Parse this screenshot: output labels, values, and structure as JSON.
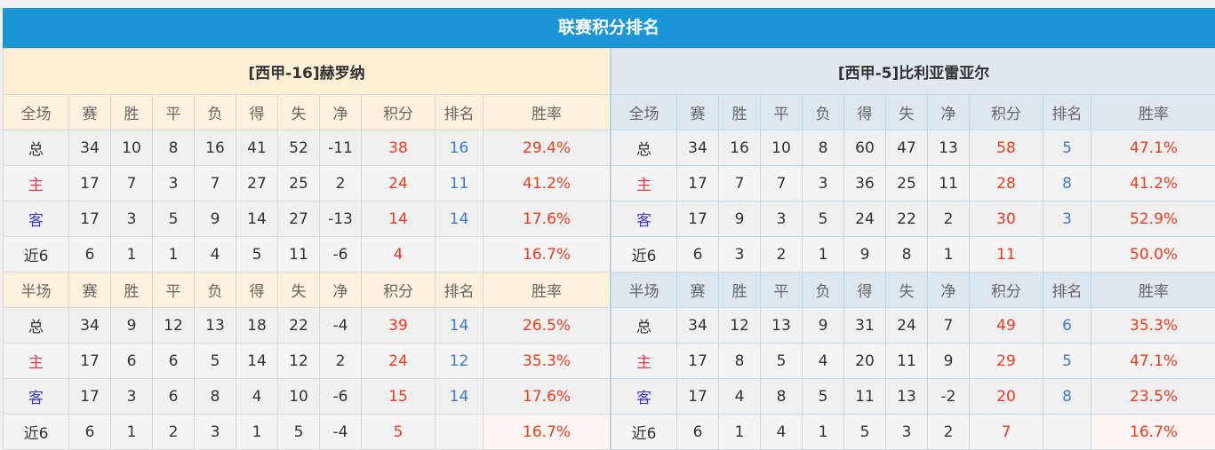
{
  "title": "联赛积分排名",
  "headers_full": [
    "全场",
    "赛",
    "胜",
    "平",
    "负",
    "得",
    "失",
    "净",
    "积分",
    "排名",
    "胜率"
  ],
  "headers_half": [
    "半场",
    "赛",
    "胜",
    "平",
    "负",
    "得",
    "失",
    "净",
    "积分",
    "排名",
    "胜率"
  ],
  "teams": [
    {
      "name": "[西甲-16]赫罗纳",
      "full": [
        [
          "总",
          "34",
          "10",
          "8",
          "16",
          "41",
          "52",
          "-11",
          "38",
          "16",
          "29.4%"
        ],
        [
          "主",
          "17",
          "7",
          "3",
          "7",
          "27",
          "25",
          "2",
          "24",
          "11",
          "41.2%"
        ],
        [
          "客",
          "17",
          "3",
          "5",
          "9",
          "14",
          "27",
          "-13",
          "14",
          "14",
          "17.6%"
        ],
        [
          "近6",
          "6",
          "1",
          "1",
          "4",
          "5",
          "11",
          "-6",
          "4",
          "",
          "16.7%"
        ]
      ],
      "half": [
        [
          "总",
          "34",
          "9",
          "12",
          "13",
          "18",
          "22",
          "-4",
          "39",
          "14",
          "26.5%"
        ],
        [
          "主",
          "17",
          "6",
          "6",
          "5",
          "14",
          "12",
          "2",
          "24",
          "12",
          "35.3%"
        ],
        [
          "客",
          "17",
          "3",
          "6",
          "8",
          "4",
          "10",
          "-6",
          "15",
          "14",
          "17.6%"
        ],
        [
          "近6",
          "6",
          "1",
          "2",
          "3",
          "1",
          "5",
          "-4",
          "5",
          "",
          "16.7%"
        ]
      ]
    },
    {
      "name": "[西甲-5]比利亚雷亚尔",
      "full": [
        [
          "总",
          "34",
          "16",
          "10",
          "8",
          "60",
          "47",
          "13",
          "58",
          "5",
          "47.1%"
        ],
        [
          "主",
          "17",
          "7",
          "7",
          "3",
          "36",
          "25",
          "11",
          "28",
          "8",
          "41.2%"
        ],
        [
          "客",
          "17",
          "9",
          "3",
          "5",
          "24",
          "22",
          "2",
          "30",
          "3",
          "52.9%"
        ],
        [
          "近6",
          "6",
          "3",
          "2",
          "1",
          "9",
          "8",
          "1",
          "11",
          "",
          "50.0%"
        ]
      ],
      "half": [
        [
          "总",
          "34",
          "12",
          "13",
          "9",
          "31",
          "24",
          "7",
          "49",
          "6",
          "35.3%"
        ],
        [
          "主",
          "17",
          "8",
          "5",
          "4",
          "20",
          "11",
          "9",
          "29",
          "5",
          "47.1%"
        ],
        [
          "客",
          "17",
          "4",
          "8",
          "5",
          "11",
          "13",
          "-2",
          "20",
          "8",
          "23.5%"
        ],
        [
          "近6",
          "6",
          "1",
          "4",
          "1",
          "5",
          "3",
          "2",
          "7",
          "",
          "16.7%"
        ]
      ]
    }
  ],
  "colors": {
    "title_bar": "#1a96d4",
    "points": "#f03c1e",
    "rank": "#3a7bd5"
  }
}
